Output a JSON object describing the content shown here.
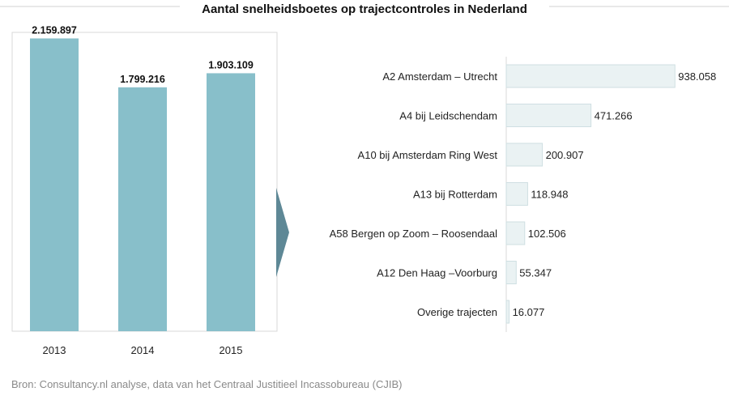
{
  "chart_data": [
    {
      "type": "bar",
      "orientation": "vertical",
      "title": "Aantal snelheidsboetes op trajectcontroles in Nederland",
      "categories": [
        "2013",
        "2014",
        "2015"
      ],
      "values": [
        2159897,
        1799216,
        1903109
      ],
      "value_labels": [
        "2.159.897",
        "1.799.216",
        "1.903.109"
      ],
      "ylim": [
        0,
        2300000
      ],
      "color": "#88bfca"
    },
    {
      "type": "bar",
      "orientation": "horizontal",
      "categories": [
        "A2 Amsterdam – Utrecht",
        "A4 bij Leidschendam",
        "A10 bij Amsterdam Ring West",
        "A13 bij Rotterdam",
        "A58 Bergen op Zoom – Roosendaal",
        "A12 Den Haag –Voorburg",
        "Overige trajecten"
      ],
      "values": [
        938058,
        471266,
        200907,
        118948,
        102506,
        55347,
        16077
      ],
      "value_labels": [
        "938.058",
        "471.266",
        "200.907",
        "118.948",
        "102.506",
        "55.347",
        "16.077"
      ],
      "xlim": [
        0,
        1000000
      ],
      "color": "#eaf2f3",
      "border_color": "#cfdfe2"
    }
  ],
  "source": "Bron: Consultancy.nl analyse, data van het Centraal Justitieel Incassobureau  (CJIB)",
  "colors": {
    "arrow": "#5e8896",
    "panel_border": "#d9d9d9",
    "title_rule": "#d0d0d0"
  }
}
